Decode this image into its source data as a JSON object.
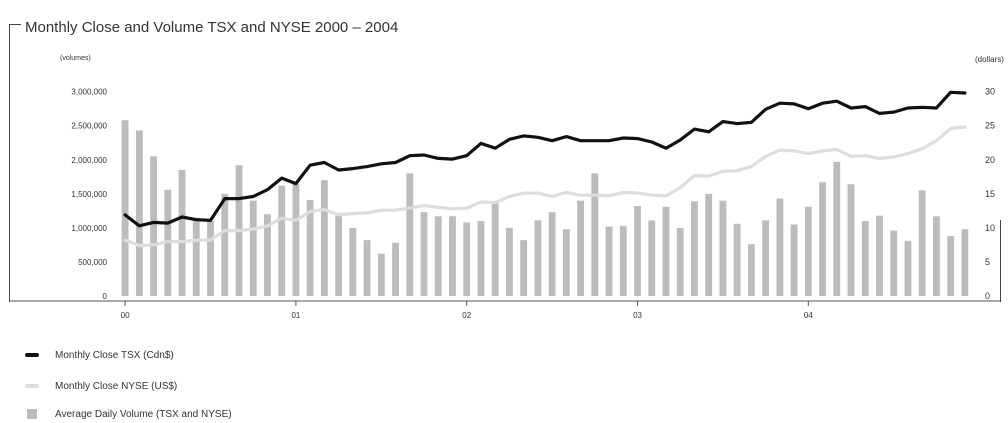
{
  "title": "Monthly Close and Volume TSX and NYSE 2000 – 2004",
  "legend": {
    "tsx": "Monthly Close TSX (Cdn$)",
    "nyse": "Monthly Close NYSE (US$)",
    "volume": "Average Daily Volume (TSX and NYSE)"
  },
  "colors": {
    "tsx": "#111111",
    "nyse": "#dddddd",
    "volume": "#bcbcbc"
  },
  "chart_data": {
    "type": "bar",
    "title": "Monthly Close and Volume TSX and NYSE 2000 – 2004",
    "xlabel": "",
    "ylabel": "(volumes)",
    "y2label": "(dollars)",
    "ylim": [
      0,
      3200000
    ],
    "y2lim": [
      0,
      32
    ],
    "y_ticks": [
      "0",
      "500,000",
      "1,000,000",
      "1,500,000",
      "2,000,000",
      "2,500,000",
      "3,000,000"
    ],
    "y2_ticks": [
      "0",
      "5",
      "10",
      "15",
      "20",
      "25",
      "30"
    ],
    "x_ticks": [
      "00",
      "01",
      "02",
      "03",
      "04"
    ],
    "grid": false,
    "series": [
      {
        "name": "Average Daily Volume (TSX and NYSE)",
        "type": "bar",
        "axis": "left",
        "values": [
          2580000,
          2430000,
          2050000,
          1560000,
          1850000,
          1150000,
          1100000,
          1500000,
          1920000,
          1400000,
          1200000,
          1620000,
          1650000,
          1410000,
          1700000,
          1220000,
          1000000,
          820000,
          620000,
          780000,
          1800000,
          1230000,
          1170000,
          1170000,
          1080000,
          1100000,
          1380000,
          1000000,
          820000,
          1110000,
          1230000,
          980000,
          1400000,
          1800000,
          1020000,
          1030000,
          1320000,
          1110000,
          1310000,
          1000000,
          1390000,
          1500000,
          1400000,
          1060000,
          760000,
          1110000,
          1430000,
          1050000,
          1310000,
          1670000,
          1970000,
          1640000,
          1100000,
          1180000,
          960000,
          810000,
          1550000,
          1170000,
          880000,
          980000
        ]
      },
      {
        "name": "Monthly Close TSX (Cdn$)",
        "type": "line",
        "axis": "right",
        "values": [
          11.9,
          10.3,
          10.8,
          10.7,
          11.6,
          11.2,
          11.1,
          14.3,
          14.3,
          14.6,
          15.6,
          17.3,
          16.5,
          19.2,
          19.6,
          18.5,
          18.7,
          19.0,
          19.4,
          19.6,
          20.6,
          20.7,
          20.2,
          20.1,
          20.6,
          22.4,
          21.7,
          23.0,
          23.5,
          23.3,
          22.8,
          23.4,
          22.8,
          22.8,
          22.8,
          23.2,
          23.1,
          22.6,
          21.7,
          22.9,
          24.5,
          24.1,
          25.6,
          25.3,
          25.5,
          27.4,
          28.3,
          28.2,
          27.5,
          28.3,
          28.6,
          27.6,
          27.8,
          26.8,
          27.0,
          27.6,
          27.7,
          27.6,
          29.9,
          29.8
        ]
      },
      {
        "name": "Monthly Close NYSE (US$)",
        "type": "line",
        "axis": "right",
        "values": [
          8.2,
          7.4,
          7.5,
          8.0,
          8.0,
          8.2,
          8.2,
          9.6,
          9.6,
          9.8,
          10.3,
          11.4,
          11.1,
          12.4,
          12.7,
          11.9,
          12.1,
          12.2,
          12.6,
          12.6,
          12.9,
          13.3,
          13.0,
          12.8,
          12.9,
          13.8,
          13.7,
          14.6,
          15.1,
          15.1,
          14.6,
          15.2,
          14.8,
          14.8,
          14.7,
          15.2,
          15.1,
          14.8,
          14.7,
          15.9,
          17.7,
          17.6,
          18.3,
          18.4,
          19.0,
          20.5,
          21.4,
          21.3,
          20.9,
          21.3,
          21.5,
          20.5,
          20.6,
          20.2,
          20.4,
          20.9,
          21.6,
          22.8,
          24.6,
          24.8
        ]
      }
    ]
  }
}
